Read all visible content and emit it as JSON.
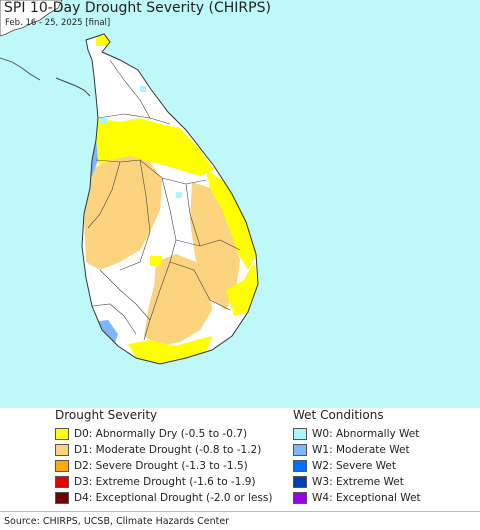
{
  "header": {
    "title": "SPI 10-Day Drought Severity (CHIRPS)",
    "subtitle": "Feb. 16 - 25, 2025 [final]"
  },
  "map": {
    "ocean_color": "#bff8f8",
    "land_color": "#ffffff",
    "boundary_color": "#444444",
    "dominant_categories": [
      "D1",
      "D0",
      "W1",
      "W0"
    ]
  },
  "legend": {
    "drought": {
      "title": "Drought Severity",
      "items": [
        {
          "label": "D0: Abnormally Dry (-0.5 to -0.7)",
          "color": "#ffff00"
        },
        {
          "label": "D1: Moderate Drought (-0.8 to -1.2)",
          "color": "#fcd37f"
        },
        {
          "label": "D2: Severe Drought (-1.3 to -1.5)",
          "color": "#ffaa00"
        },
        {
          "label": "D3: Extreme Drought (-1.6 to -1.9)",
          "color": "#e60000"
        },
        {
          "label": "D4: Exceptional Drought (-2.0 or less)",
          "color": "#730000"
        }
      ]
    },
    "wet": {
      "title": "Wet Conditions",
      "items": [
        {
          "label": "W0: Abnormally Wet",
          "color": "#aaf5ff"
        },
        {
          "label": "W1: Moderate Wet",
          "color": "#7fb4ff"
        },
        {
          "label": "W2: Severe Wet",
          "color": "#0070ff"
        },
        {
          "label": "W3: Extreme Wet",
          "color": "#0040b0"
        },
        {
          "label": "W4: Exceptional Wet",
          "color": "#9900e6"
        }
      ]
    }
  },
  "footer": {
    "source": "Source: CHIRPS, UCSB, Climate Hazards Center"
  }
}
